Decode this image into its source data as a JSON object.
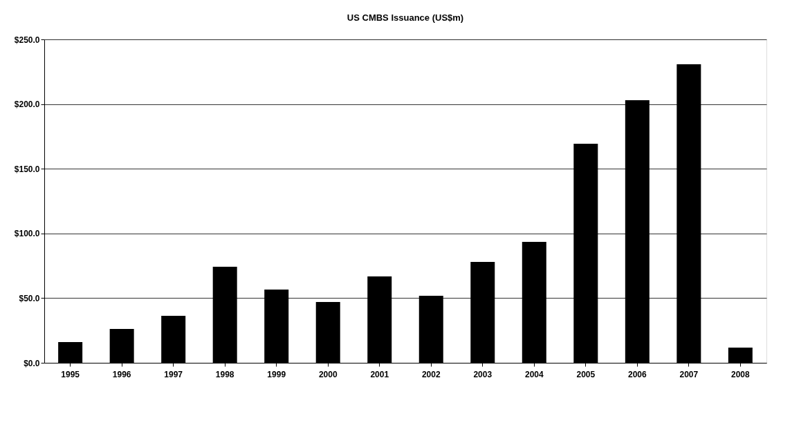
{
  "chart_data": {
    "type": "bar",
    "title": "US CMBS Issuance (US$m)",
    "categories": [
      "1995",
      "1996",
      "1997",
      "1998",
      "1999",
      "2000",
      "2001",
      "2002",
      "2003",
      "2004",
      "2005",
      "2006",
      "2007",
      "2008"
    ],
    "values": [
      16.0,
      26.2,
      36.3,
      74.3,
      56.6,
      47.0,
      66.8,
      51.8,
      78.0,
      93.5,
      169.3,
      203.0,
      230.8,
      11.8
    ],
    "color": "#000000",
    "ylim": [
      0,
      250
    ],
    "yticks": [
      {
        "value": 0,
        "label": "$0.0"
      },
      {
        "value": 50,
        "label": "$50.0"
      },
      {
        "value": 100,
        "label": "$100.0"
      },
      {
        "value": 150,
        "label": "$150.0"
      },
      {
        "value": 200,
        "label": "$200.0"
      },
      {
        "value": 250,
        "label": "$250.0"
      }
    ],
    "grid": "y"
  }
}
